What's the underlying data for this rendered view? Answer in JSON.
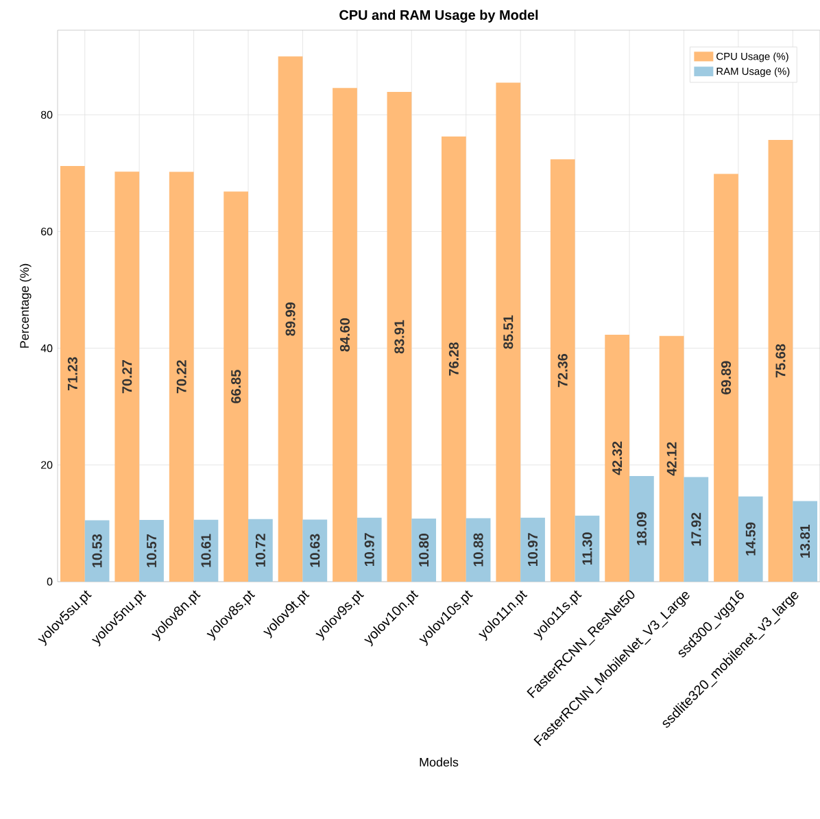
{
  "chart_data": {
    "type": "bar",
    "title": "CPU and RAM Usage by Model",
    "xlabel": "Models",
    "ylabel": "Percentage (%)",
    "categories": [
      "yolov5su.pt",
      "yolov5nu.pt",
      "yolov8n.pt",
      "yolov8s.pt",
      "yolov9t.pt",
      "yolov9s.pt",
      "yolov10n.pt",
      "yolov10s.pt",
      "yolo11n.pt",
      "yolo11s.pt",
      "FasterRCNN_ResNet50",
      "FasterRCNN_MobileNet_V3_Large",
      "ssd300_vgg16",
      "ssdlite320_mobilenet_v3_large"
    ],
    "series": [
      {
        "name": "CPU Usage (%)",
        "color": "#ffbb78",
        "values": [
          71.23,
          70.27,
          70.22,
          66.85,
          89.99,
          84.6,
          83.91,
          76.28,
          85.51,
          72.36,
          42.32,
          42.12,
          69.89,
          75.68
        ],
        "value_labels": [
          "71.23",
          "70.27",
          "70.22",
          "66.85",
          "89.99",
          "84.60",
          "83.91",
          "76.28",
          "85.51",
          "72.36",
          "42.32",
          "42.12",
          "69.89",
          "75.68"
        ]
      },
      {
        "name": "RAM Usage (%)",
        "color": "#9ecae1",
        "values": [
          10.53,
          10.57,
          10.61,
          10.72,
          10.63,
          10.97,
          10.8,
          10.88,
          10.97,
          11.3,
          18.09,
          17.92,
          14.59,
          13.81
        ],
        "value_labels": [
          "10.53",
          "10.57",
          "10.61",
          "10.72",
          "10.63",
          "10.97",
          "10.80",
          "10.88",
          "10.97",
          "11.30",
          "18.09",
          "17.92",
          "14.59",
          "13.81"
        ]
      }
    ],
    "ylim": [
      0,
      94.5
    ],
    "yticks": [
      0,
      20,
      40,
      60,
      80
    ],
    "grid": true,
    "legend": "top right"
  }
}
